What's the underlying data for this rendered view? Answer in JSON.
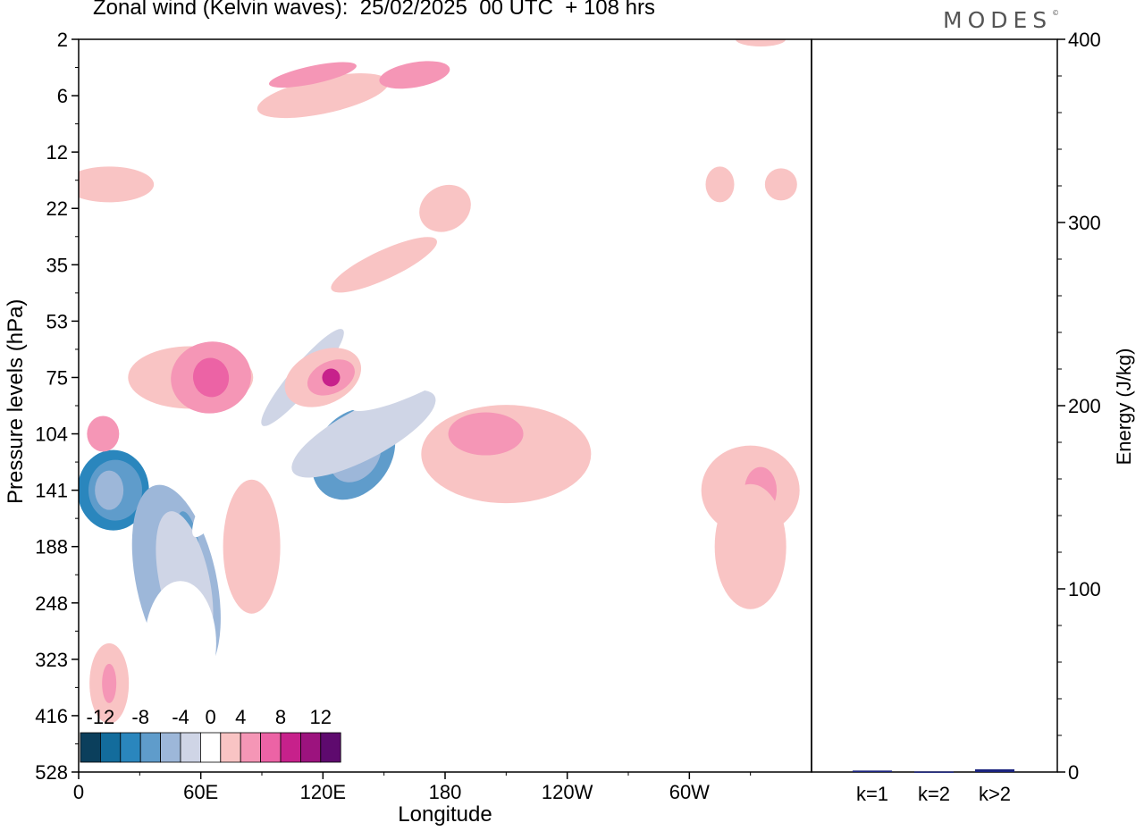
{
  "header": {
    "title": "Zonal wind (Kelvin waves):  25/02/2025  00 UTC  + 108 hrs",
    "logo": "MODES",
    "logo_mark": "©"
  },
  "chart_data": [
    {
      "type": "heatmap",
      "title": "Zonal wind (Kelvin waves):  25/02/2025  00 UTC  + 108 hrs",
      "xlabel": "Longitude",
      "ylabel": "Pressure levels (hPa)",
      "x_ticks": [
        "0",
        "60E",
        "120E",
        "180",
        "120W",
        "60W"
      ],
      "x_tick_values": [
        0,
        60,
        120,
        180,
        240,
        300
      ],
      "xlim": [
        0,
        360
      ],
      "y_ticks": [
        "2",
        "6",
        "12",
        "22",
        "35",
        "53",
        "75",
        "104",
        "141",
        "188",
        "248",
        "323",
        "416",
        "528"
      ],
      "y_scale": "model levels (top = 2 hPa, bottom = 528 hPa)",
      "colorbar": {
        "tick_labels": [
          "-12",
          "-8",
          "-4",
          "0",
          "4",
          "8",
          "12"
        ],
        "levels": [
          -14,
          -12,
          -10,
          -8,
          -6,
          -4,
          -2,
          2,
          4,
          6,
          8,
          10,
          12,
          14
        ],
        "colors": [
          "#0b3f5c",
          "#136c9c",
          "#2a86bd",
          "#5f9ccb",
          "#9db7d9",
          "#cfd5e6",
          "#ffffff",
          "#f9c4c4",
          "#f596b6",
          "#ec63a5",
          "#c7218b",
          "#9c137e",
          "#5e0a6e"
        ],
        "placement": "bottom-left"
      },
      "blobs": [
        {
          "lon": 17,
          "p": "141",
          "value": -10
        },
        {
          "lon": 18,
          "p": "141",
          "value": -8
        },
        {
          "lon": 15,
          "p": "141",
          "value": -6
        },
        {
          "lon": 48,
          "p": "223",
          "value": -6
        },
        {
          "lon": 54,
          "p": "188",
          "value": -8
        },
        {
          "lon": 52,
          "p": "223",
          "value": -4
        },
        {
          "lon": 50,
          "p": "300",
          "value": -2
        },
        {
          "lon": 70,
          "p": "141",
          "value": -2
        },
        {
          "lon": 135,
          "p": "116",
          "value": -8
        },
        {
          "lon": 136,
          "p": "116",
          "value": -6
        },
        {
          "lon": 140,
          "p": "104",
          "value": -4
        },
        {
          "lon": 165,
          "p": "75",
          "value": -2
        },
        {
          "lon": 110,
          "p": "75",
          "value": -4
        },
        {
          "lon": 70,
          "p": "12",
          "value": -2
        },
        {
          "lon": 165,
          "p": "12",
          "value": -2
        },
        {
          "lon": 50,
          "p": "2",
          "value": -2
        },
        {
          "lon": 265,
          "p": "2",
          "value": -2
        },
        {
          "lon": 305,
          "p": "53",
          "value": -2
        },
        {
          "lon": 335,
          "p": "2",
          "value": 2
        },
        {
          "lon": 12,
          "p": "104",
          "value": 4
        },
        {
          "lon": 55,
          "p": "75",
          "value": 2
        },
        {
          "lon": 65,
          "p": "75",
          "value": 4
        },
        {
          "lon": 65,
          "p": "75",
          "value": 6
        },
        {
          "lon": 120,
          "p": "75",
          "value": 2
        },
        {
          "lon": 124,
          "p": "75",
          "value": 4
        },
        {
          "lon": 124,
          "p": "75",
          "value": 8
        },
        {
          "lon": 210,
          "p": "116",
          "value": 2
        },
        {
          "lon": 200,
          "p": "104",
          "value": 4
        },
        {
          "lon": 330,
          "p": "141",
          "value": 2
        },
        {
          "lon": 335,
          "p": "141",
          "value": 4
        },
        {
          "lon": 330,
          "p": "188",
          "value": 2
        },
        {
          "lon": 85,
          "p": "188",
          "value": 2
        },
        {
          "lon": 15,
          "p": "360",
          "value": 2
        },
        {
          "lon": 15,
          "p": "360",
          "value": 4
        },
        {
          "lon": 120,
          "p": "6",
          "value": 2
        },
        {
          "lon": 115,
          "p": "4",
          "value": 4
        },
        {
          "lon": 165,
          "p": "4",
          "value": 4
        },
        {
          "lon": 150,
          "p": "35",
          "value": 2
        },
        {
          "lon": 180,
          "p": "22",
          "value": 2
        },
        {
          "lon": 15,
          "p": "17",
          "value": 2
        },
        {
          "lon": 345,
          "p": "17",
          "value": 2
        },
        {
          "lon": 315,
          "p": "17",
          "value": 2
        }
      ]
    },
    {
      "type": "bar",
      "categories": [
        "k=1",
        "k=2",
        "k>2"
      ],
      "values": [
        0.8,
        0.3,
        1.5
      ],
      "ylabel": "Energy (J/kg)",
      "ylim": [
        0,
        400
      ],
      "y_ticks": [
        "0",
        "100",
        "200",
        "300",
        "400"
      ],
      "bar_color": "#1a237e"
    }
  ]
}
